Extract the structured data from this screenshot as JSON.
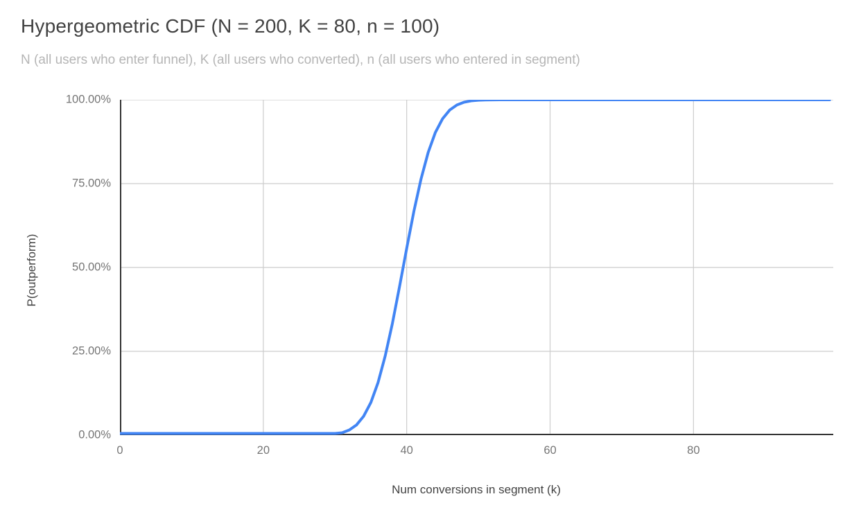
{
  "chart_data": {
    "type": "line",
    "title": "Hypergeometric CDF (N = 200, K = 80, n = 100)",
    "subtitle": "N (all users who enter funnel), K (all users who converted), n (all users who entered in segment)",
    "xlabel": "Num conversions in segment (k)",
    "ylabel": "P(outperform)",
    "xlim": [
      0,
      99.5
    ],
    "ylim": [
      0,
      100
    ],
    "grid": true,
    "legend": "none",
    "x_ticks": [
      0,
      20,
      40,
      60,
      80
    ],
    "y_tick_values": [
      0,
      25,
      50,
      75,
      100
    ],
    "y_tick_labels": [
      "0.00%",
      "25.00%",
      "50.00%",
      "75.00%",
      "100.00%"
    ],
    "series": [
      {
        "name": "P(outperform)",
        "x": [
          0,
          1,
          2,
          3,
          4,
          5,
          6,
          7,
          8,
          9,
          10,
          11,
          12,
          13,
          14,
          15,
          16,
          17,
          18,
          19,
          20,
          21,
          22,
          23,
          24,
          25,
          26,
          27,
          28,
          29,
          30,
          31,
          32,
          33,
          34,
          35,
          36,
          37,
          38,
          39,
          40,
          41,
          42,
          43,
          44,
          45,
          46,
          47,
          48,
          49,
          50,
          51,
          52,
          53,
          54,
          55,
          56,
          57,
          58,
          59,
          60,
          61,
          62,
          63,
          64,
          65,
          66,
          67,
          68,
          69,
          70,
          71,
          72,
          73,
          74,
          75,
          76,
          77,
          78,
          79,
          80,
          81,
          82,
          83,
          84,
          85,
          86,
          87,
          88,
          89,
          90,
          91,
          92,
          93,
          94,
          95,
          96,
          97,
          98,
          99
        ],
        "y_percent": [
          0,
          0,
          0,
          0,
          0,
          0,
          0,
          0,
          0,
          0,
          0,
          0,
          0,
          0,
          0,
          0,
          0,
          0,
          0,
          0,
          0,
          0,
          0,
          0,
          0,
          0,
          0.01,
          0.02,
          0.05,
          0.13,
          0.31,
          0.72,
          1.54,
          3.06,
          5.66,
          9.75,
          15.67,
          23.58,
          33.29,
          44.28,
          55.72,
          66.71,
          76.42,
          84.33,
          90.25,
          94.34,
          96.94,
          98.46,
          99.28,
          99.69,
          99.88,
          99.95,
          99.98,
          99.99,
          100,
          100,
          100,
          100,
          100,
          100,
          100,
          100,
          100,
          100,
          100,
          100,
          100,
          100,
          100,
          100,
          100,
          100,
          100,
          100,
          100,
          100,
          100,
          100,
          100,
          100,
          100,
          100,
          100,
          100,
          100,
          100,
          100,
          100,
          100,
          100,
          100,
          100,
          100,
          100,
          100,
          100,
          100,
          100,
          100,
          100
        ]
      }
    ],
    "style": {
      "line_color": "#4285f4",
      "grid_color": "#cccccc",
      "axis_color": "#333333",
      "tick_color": "#757575",
      "title_color": "#424242",
      "subtitle_color": "#b5b5b5",
      "background": "#ffffff"
    }
  }
}
